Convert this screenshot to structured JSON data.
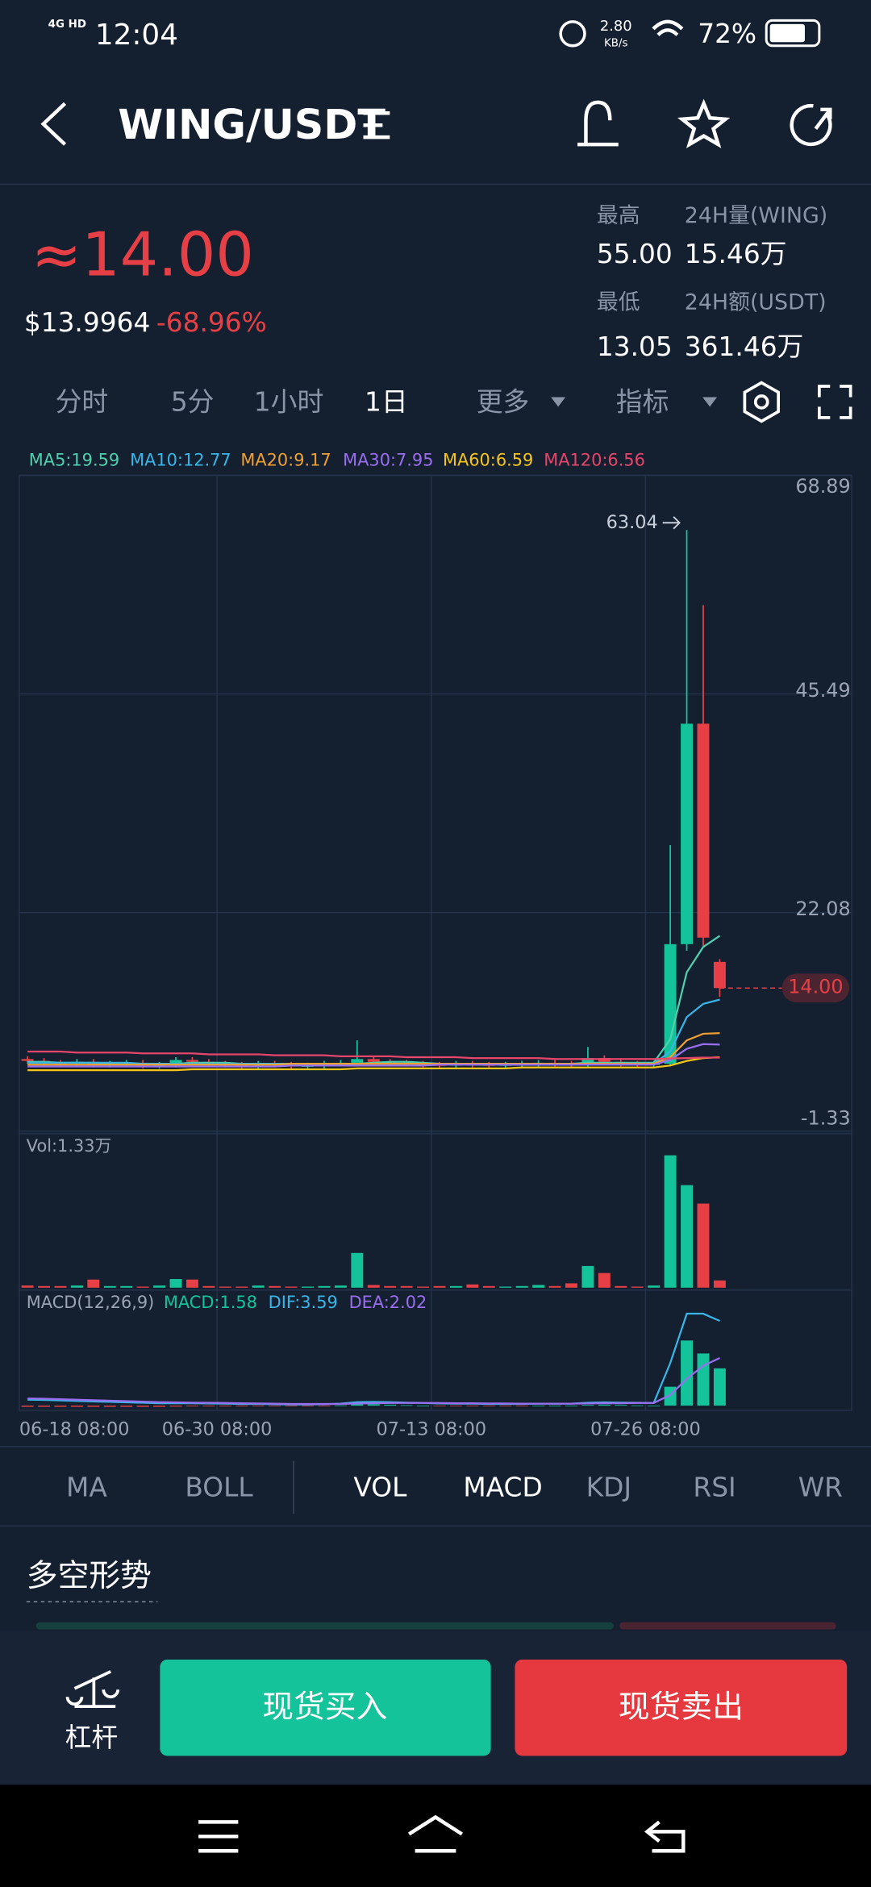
{
  "status_bar": {
    "network": "4G HD",
    "time": "12:04",
    "speed": "2.80",
    "speed_unit": "KB/s",
    "battery": "72%"
  },
  "header": {
    "title": "WING/USDT"
  },
  "ticker": {
    "price": "≈14.00",
    "usd_price": "$13.9964",
    "change": "-68.96%",
    "high_label": "最高",
    "high": "55.00",
    "volume_label": "24H量(WING)",
    "volume": "15.46万",
    "low_label": "最低",
    "low": "13.05",
    "amount_label": "24H额(USDT)",
    "amount": "361.46万"
  },
  "period_tabs": [
    "分时",
    "5分",
    "1小时",
    "1日",
    "更多",
    "指标"
  ],
  "active_period": 3,
  "chart_data": {
    "type": "candlestick",
    "categories": [
      "06-18 08:00",
      null,
      null,
      null,
      null,
      null,
      null,
      null,
      null,
      null,
      null,
      null,
      "06-30 08:00",
      null,
      null,
      null,
      null,
      null,
      null,
      null,
      null,
      null,
      null,
      null,
      null,
      "07-13 08:00",
      null,
      null,
      null,
      null,
      null,
      null,
      null,
      null,
      null,
      null,
      null,
      null,
      "07-26 08:00",
      null,
      null,
      null,
      null
    ],
    "open": [
      6.4,
      6.2,
      6.0,
      5.9,
      6.1,
      5.8,
      5.9,
      6.0,
      5.7,
      5.8,
      6.3,
      6.1,
      5.9,
      5.8,
      5.7,
      5.9,
      5.8,
      5.6,
      5.7,
      5.9,
      6.0,
      6.4,
      6.1,
      6.0,
      5.9,
      5.8,
      5.7,
      5.9,
      5.8,
      5.7,
      5.8,
      5.9,
      6.0,
      5.9,
      5.8,
      6.5,
      6.1,
      5.9,
      5.8,
      5.9,
      18.7,
      42.3,
      16.8
    ],
    "high": [
      6.7,
      6.5,
      6.3,
      6.4,
      6.4,
      6.2,
      6.3,
      6.3,
      6.1,
      6.6,
      6.6,
      6.4,
      6.2,
      6.1,
      6.2,
      6.2,
      6.1,
      6.0,
      6.2,
      6.3,
      8.4,
      6.7,
      6.4,
      6.3,
      6.2,
      6.1,
      6.2,
      6.2,
      6.1,
      6.1,
      6.2,
      6.3,
      6.3,
      6.2,
      7.7,
      6.8,
      6.4,
      6.2,
      6.2,
      29.3,
      63.04,
      55.0,
      17.1
    ],
    "low": [
      5.9,
      5.7,
      5.6,
      5.6,
      5.5,
      5.5,
      5.6,
      5.4,
      5.4,
      5.5,
      5.8,
      5.6,
      5.5,
      5.4,
      5.4,
      5.5,
      5.3,
      5.3,
      5.4,
      5.6,
      5.7,
      5.8,
      5.7,
      5.6,
      5.5,
      5.4,
      5.4,
      5.5,
      5.4,
      5.4,
      5.5,
      5.6,
      5.6,
      5.5,
      5.5,
      5.8,
      5.6,
      5.5,
      5.5,
      5.6,
      18.0,
      18.5,
      13.05
    ],
    "close": [
      6.2,
      6.0,
      5.9,
      6.1,
      5.8,
      5.9,
      6.0,
      5.7,
      5.8,
      6.3,
      6.1,
      5.9,
      5.8,
      5.7,
      5.9,
      5.8,
      5.6,
      5.7,
      5.9,
      6.0,
      6.4,
      6.1,
      6.0,
      5.9,
      5.8,
      5.7,
      5.9,
      5.8,
      5.7,
      5.8,
      5.9,
      6.0,
      5.9,
      5.8,
      6.5,
      6.1,
      5.9,
      5.8,
      5.9,
      18.7,
      42.3,
      19.4,
      14.0
    ],
    "up_color": "#14c39a",
    "down_color": "#e64046",
    "ylim": [
      -1.33,
      68.89
    ],
    "yticks": [
      68.89,
      45.49,
      22.08,
      -1.33
    ],
    "grid": true,
    "high_marker": 63.04,
    "last_price": {
      "value": 14,
      "label": "14.00"
    },
    "ma_series": [
      {
        "label": "MA5:19.59",
        "color": "#4fd1b0",
        "values": [
          6.1,
          6.1,
          6.0,
          6.0,
          6.0,
          5.9,
          5.9,
          5.9,
          5.8,
          5.9,
          6.0,
          6.0,
          6.0,
          5.9,
          5.9,
          5.8,
          5.8,
          5.7,
          5.7,
          5.8,
          5.9,
          6.0,
          6.1,
          6.1,
          6.0,
          5.9,
          5.9,
          5.8,
          5.8,
          5.8,
          5.8,
          5.8,
          5.9,
          5.9,
          6.0,
          6.0,
          6.0,
          6.0,
          6.0,
          8.5,
          15.7,
          18.4,
          19.59
        ]
      },
      {
        "label": "MA10:12.77",
        "color": "#38b6e8",
        "values": [
          6.0,
          6.0,
          6.0,
          6.0,
          6.0,
          6.0,
          6.0,
          5.9,
          5.9,
          5.9,
          5.9,
          5.9,
          5.9,
          5.9,
          5.9,
          5.9,
          5.9,
          5.8,
          5.8,
          5.8,
          5.9,
          5.9,
          5.9,
          5.9,
          5.9,
          5.9,
          5.9,
          5.9,
          5.9,
          5.9,
          5.9,
          5.8,
          5.8,
          5.8,
          5.9,
          5.9,
          5.9,
          5.9,
          5.9,
          7.2,
          10.9,
          12.3,
          12.77
        ]
      },
      {
        "label": "MA20:9.17",
        "color": "#f0a030",
        "values": [
          5.8,
          5.8,
          5.8,
          5.8,
          5.8,
          5.8,
          5.8,
          5.8,
          5.8,
          5.8,
          5.8,
          5.8,
          5.8,
          5.8,
          5.8,
          5.8,
          5.9,
          5.9,
          5.9,
          5.9,
          5.9,
          5.9,
          5.9,
          5.9,
          5.9,
          5.9,
          5.9,
          5.9,
          5.9,
          5.9,
          5.9,
          5.9,
          5.9,
          5.9,
          5.9,
          5.9,
          5.9,
          5.9,
          5.9,
          6.6,
          8.4,
          9.1,
          9.17
        ]
      },
      {
        "label": "MA30:7.95",
        "color": "#9a6ef0",
        "values": [
          5.6,
          5.6,
          5.6,
          5.6,
          5.6,
          5.6,
          5.6,
          5.6,
          5.6,
          5.6,
          5.6,
          5.6,
          5.6,
          5.6,
          5.6,
          5.6,
          5.7,
          5.7,
          5.7,
          5.7,
          5.7,
          5.7,
          5.7,
          5.7,
          5.7,
          5.8,
          5.8,
          5.8,
          5.8,
          5.8,
          5.8,
          5.8,
          5.8,
          5.8,
          5.8,
          5.8,
          5.8,
          5.8,
          5.8,
          6.3,
          7.5,
          8.0,
          7.95
        ]
      },
      {
        "label": "MA60:6.59",
        "color": "#f5c518",
        "values": [
          5.2,
          5.2,
          5.2,
          5.2,
          5.2,
          5.2,
          5.2,
          5.2,
          5.2,
          5.2,
          5.3,
          5.3,
          5.3,
          5.3,
          5.3,
          5.3,
          5.3,
          5.3,
          5.3,
          5.3,
          5.4,
          5.4,
          5.4,
          5.4,
          5.4,
          5.4,
          5.4,
          5.4,
          5.4,
          5.4,
          5.5,
          5.5,
          5.5,
          5.5,
          5.5,
          5.5,
          5.5,
          5.5,
          5.5,
          5.7,
          6.2,
          6.5,
          6.59
        ]
      },
      {
        "label": "MA120:6.56",
        "color": "#e8456a",
        "values": [
          7.2,
          7.2,
          7.2,
          7.1,
          7.1,
          7.1,
          7.1,
          7.0,
          7.0,
          7.0,
          7.0,
          6.9,
          6.9,
          6.9,
          6.9,
          6.8,
          6.8,
          6.8,
          6.8,
          6.7,
          6.7,
          6.7,
          6.7,
          6.6,
          6.6,
          6.6,
          6.6,
          6.5,
          6.5,
          6.5,
          6.5,
          6.5,
          6.4,
          6.4,
          6.4,
          6.4,
          6.4,
          6.4,
          6.4,
          6.45,
          6.5,
          6.55,
          6.56
        ]
      }
    ],
    "volume_label": "Vol:1.33万",
    "volume": [
      0.4,
      0.3,
      0.3,
      0.4,
      1.5,
      0.3,
      0.3,
      0.2,
      0.4,
      1.6,
      1.5,
      0.3,
      0.2,
      0.2,
      0.4,
      0.3,
      0.2,
      0.2,
      0.3,
      0.4,
      6.4,
      0.5,
      0.3,
      0.3,
      0.2,
      0.3,
      0.3,
      0.6,
      0.3,
      0.2,
      0.3,
      0.5,
      0.3,
      0.8,
      4.0,
      2.7,
      0.3,
      0.2,
      0.4,
      24.4,
      18.9,
      15.5,
      1.33
    ],
    "macd_labels": [
      {
        "text": "MACD(12,26,9)",
        "color": "#9aa4b4"
      },
      {
        "text": "MACD:1.58",
        "color": "#14c39a"
      },
      {
        "text": "DIF:3.59",
        "color": "#38b6e8"
      },
      {
        "text": "DEA:2.02",
        "color": "#9a6ef0"
      }
    ],
    "macd": [
      -0.05,
      -0.05,
      -0.05,
      -0.05,
      -0.05,
      -0.05,
      -0.05,
      -0.05,
      -0.05,
      -0.04,
      -0.03,
      -0.03,
      -0.03,
      -0.03,
      -0.02,
      -0.02,
      -0.02,
      -0.02,
      -0.01,
      0.01,
      0.06,
      0.06,
      0.04,
      0.02,
      0,
      -0.02,
      -0.02,
      -0.02,
      -0.02,
      -0.02,
      -0.01,
      0,
      0,
      0,
      0.03,
      0.04,
      0.03,
      0.01,
      0,
      0.8,
      2.76,
      2.21,
      1.58
    ],
    "dif": [
      0.25,
      0.24,
      0.22,
      0.2,
      0.18,
      0.16,
      0.14,
      0.12,
      0.1,
      0.1,
      0.1,
      0.09,
      0.08,
      0.07,
      0.07,
      0.06,
      0.05,
      0.05,
      0.06,
      0.08,
      0.15,
      0.16,
      0.15,
      0.13,
      0.11,
      0.09,
      0.08,
      0.08,
      0.07,
      0.07,
      0.07,
      0.08,
      0.08,
      0.08,
      0.12,
      0.14,
      0.13,
      0.12,
      0.11,
      1.8,
      3.9,
      3.9,
      3.59
    ],
    "dea": [
      0.3,
      0.29,
      0.27,
      0.25,
      0.23,
      0.21,
      0.19,
      0.17,
      0.15,
      0.14,
      0.13,
      0.12,
      0.11,
      0.1,
      0.09,
      0.08,
      0.07,
      0.07,
      0.07,
      0.07,
      0.09,
      0.1,
      0.11,
      0.11,
      0.11,
      0.11,
      0.1,
      0.1,
      0.09,
      0.09,
      0.08,
      0.08,
      0.08,
      0.08,
      0.09,
      0.1,
      0.1,
      0.11,
      0.11,
      0.45,
      1.14,
      1.69,
      2.02
    ]
  },
  "indicator_tabs": [
    "MA",
    "BOLL",
    "VOL",
    "MACD",
    "KDJ",
    "RSI",
    "WR"
  ],
  "section_title": "多空形势",
  "bottom_bar": {
    "leverage": "杠杆",
    "buy": "现货买入",
    "sell": "现货卖出"
  }
}
